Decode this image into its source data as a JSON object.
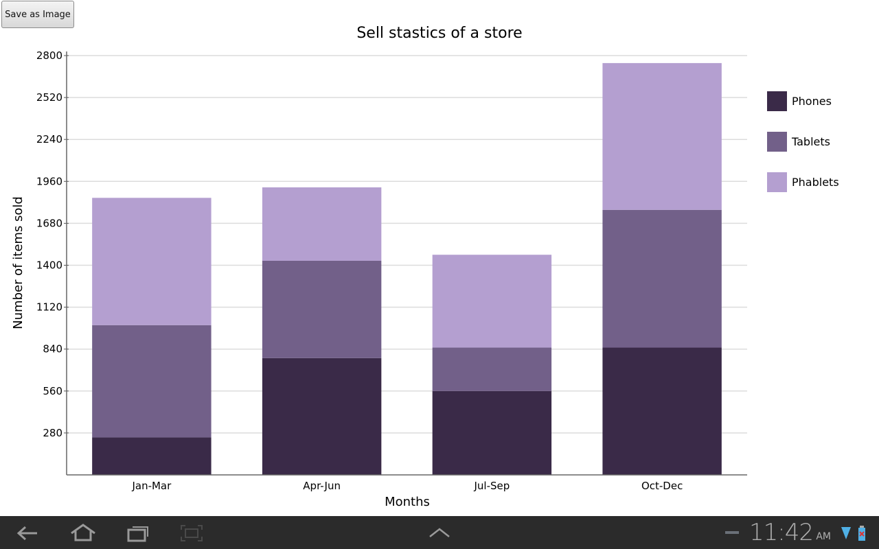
{
  "button": {
    "save_label": "Save as Image"
  },
  "chart_data": {
    "type": "bar",
    "stacked": true,
    "title": "Sell stastics of a store",
    "xlabel": "Months",
    "ylabel": "Number of items sold",
    "categories": [
      "Jan-Mar",
      "Apr-Jun",
      "Jul-Sep",
      "Oct-Dec"
    ],
    "series": [
      {
        "name": "Phones",
        "values": [
          250,
          780,
          560,
          850
        ],
        "color": "#3a2a48"
      },
      {
        "name": "Tablets",
        "values": [
          750,
          650,
          290,
          920
        ],
        "color": "#726089"
      },
      {
        "name": "Phablets",
        "values": [
          850,
          490,
          620,
          980
        ],
        "color": "#b49fd0"
      }
    ],
    "ylim": [
      0,
      2800
    ],
    "yticks": [
      280,
      560,
      840,
      1120,
      1400,
      1680,
      1960,
      2240,
      2520,
      2800
    ],
    "grid": true,
    "legend": "right"
  },
  "statusbar": {
    "time": "11:42",
    "ampm": "AM",
    "icons": [
      "back-icon",
      "home-icon",
      "recent-apps-icon",
      "screenshot-icon",
      "up-arrow-icon",
      "minus-icon",
      "wifi-icon",
      "battery-icon"
    ]
  }
}
